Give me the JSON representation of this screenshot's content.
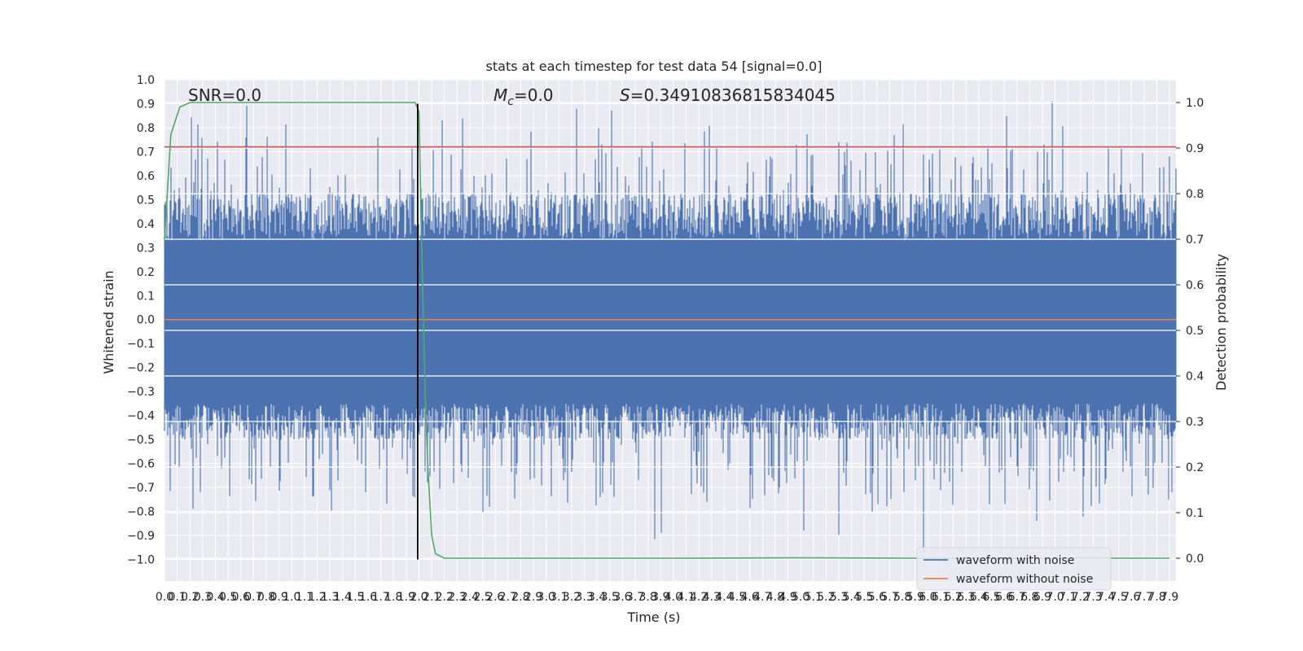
{
  "chart_data": {
    "type": "line",
    "title": "stats at each timestep for test data 54 [signal=0.0]",
    "xlabel": "Time (s)",
    "ylabel_left": "Whitened strain",
    "ylabel_right": "Detection probability",
    "xlim": [
      0.0,
      7.95
    ],
    "ylim_left": [
      -1.09,
      1.0
    ],
    "ylim_right": [
      -0.05,
      1.05
    ],
    "grid": true,
    "x_ticks": [
      "0.0",
      "0.1",
      "0.2",
      "0.3",
      "0.4",
      "0.5",
      "0.6",
      "0.7",
      "0.8",
      "0.9",
      "1.0",
      "1.1",
      "1.2",
      "1.3",
      "1.4",
      "1.5",
      "1.6",
      "1.7",
      "1.8",
      "1.9",
      "2.0",
      "2.1",
      "2.2",
      "2.3",
      "2.4",
      "2.5",
      "2.6",
      "2.7",
      "2.8",
      "2.9",
      "3.0",
      "3.1",
      "3.2",
      "3.3",
      "3.4",
      "3.5",
      "3.6",
      "3.7",
      "3.8",
      "3.9",
      "4.0",
      "4.1",
      "4.2",
      "4.3",
      "4.4",
      "4.5",
      "4.6",
      "4.7",
      "4.8",
      "4.9",
      "5.0",
      "5.1",
      "5.2",
      "5.3",
      "5.4",
      "5.5",
      "5.6",
      "5.7",
      "5.8",
      "5.9",
      "6.0",
      "6.1",
      "6.2",
      "6.3",
      "6.4",
      "6.5",
      "6.6",
      "6.7",
      "6.8",
      "6.9",
      "7.0",
      "7.1",
      "7.2",
      "7.3",
      "7.4",
      "7.5",
      "7.6",
      "7.7",
      "7.8",
      "7.9"
    ],
    "y_ticks_left": [
      "−1.0",
      "−0.9",
      "−0.8",
      "−0.7",
      "−0.6",
      "−0.5",
      "−0.4",
      "−0.3",
      "−0.2",
      "−0.1",
      "0.0",
      "0.1",
      "0.2",
      "0.3",
      "0.4",
      "0.5",
      "0.6",
      "0.7",
      "0.8",
      "0.9",
      "1.0"
    ],
    "y_ticks_right": [
      "0.0",
      "0.1",
      "0.2",
      "0.3",
      "0.4",
      "0.5",
      "0.6",
      "0.7",
      "0.8",
      "0.9",
      "1.0"
    ],
    "annotations": {
      "snr": "SNR=0.0",
      "mc_symbol": "M",
      "mc_sub": "c",
      "mc_value": "=0.0",
      "s_symbol": "S",
      "s_value": "=0.34910836815834045"
    },
    "series": [
      {
        "name": "waveform with noise",
        "color": "#4c72b0",
        "axis": "left",
        "kind": "noise-envelope",
        "core_band": [
          -0.35,
          0.33
        ],
        "peak_range": [
          -1.0,
          0.91
        ]
      },
      {
        "name": "waveform without noise",
        "color": "#dd8452",
        "axis": "left",
        "x": [
          0.0,
          7.95
        ],
        "y": [
          0.0,
          0.0
        ]
      },
      {
        "color": "#c44e52",
        "axis": "left",
        "x": [
          0.0,
          7.95
        ],
        "y": [
          0.72,
          0.72
        ]
      },
      {
        "color": "#55a868",
        "axis": "right",
        "x": [
          0.0,
          0.05,
          0.12,
          0.2,
          0.4,
          1.0,
          1.5,
          1.9,
          1.97,
          2.0,
          2.02,
          2.05,
          2.07,
          2.1,
          2.13,
          2.2,
          2.5,
          3.0,
          4.0,
          5.0,
          6.0,
          7.0,
          7.9
        ],
        "y": [
          0.7,
          0.93,
          0.99,
          1.0,
          1.0,
          1.0,
          1.0,
          1.0,
          1.0,
          0.98,
          0.7,
          0.35,
          0.2,
          0.05,
          0.01,
          0.0,
          0.0,
          0.0,
          0.0,
          0.001,
          0.0,
          0.0,
          0.0
        ]
      },
      {
        "color": "#000000",
        "axis": "left",
        "x": [
          1.99,
          1.99
        ],
        "y": [
          -1.0,
          0.9
        ]
      }
    ],
    "legend": {
      "placement": "lower-right",
      "items": [
        {
          "label": "waveform with noise",
          "color": "#4c72b0"
        },
        {
          "label": "waveform without noise",
          "color": "#dd8452"
        }
      ]
    }
  }
}
